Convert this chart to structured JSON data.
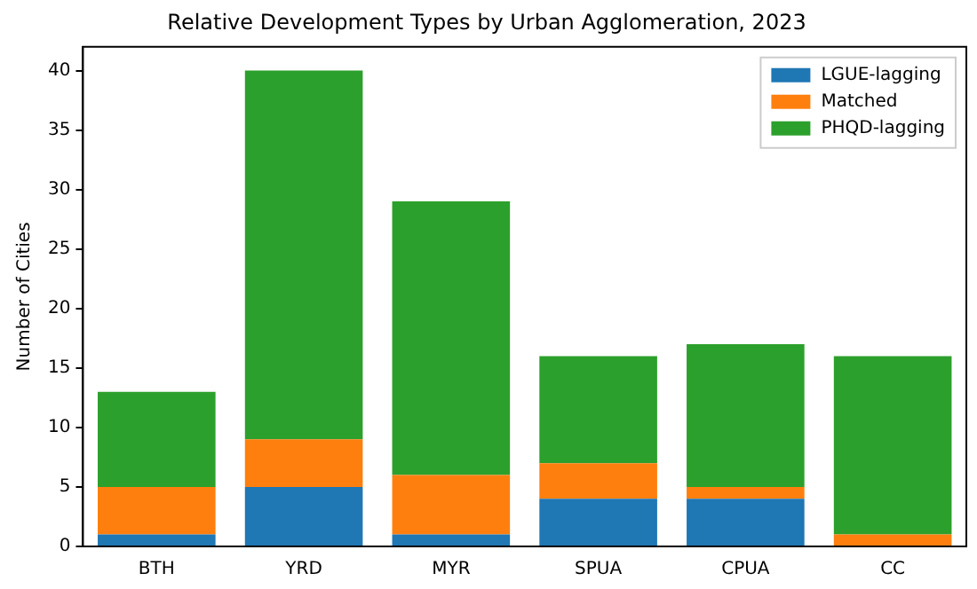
{
  "chart_data": {
    "type": "bar",
    "title": "Relative Development Types by Urban Agglomeration, 2023",
    "ylabel": "Number of Cities",
    "categories": [
      "BTH",
      "YRD",
      "MYR",
      "SPUA",
      "CPUA",
      "CC"
    ],
    "stacked": true,
    "legend": "top right",
    "grid": false,
    "ylim": [
      0,
      42
    ],
    "yticks": [
      0,
      5,
      10,
      15,
      20,
      25,
      30,
      35,
      40
    ],
    "series": [
      {
        "name": "LGUE-lagging",
        "color": "#1f77b4",
        "values": [
          1,
          5,
          1,
          4,
          4,
          0
        ]
      },
      {
        "name": "Matched",
        "color": "#ff7f0e",
        "values": [
          4,
          4,
          5,
          3,
          1,
          1
        ]
      },
      {
        "name": "PHQD-lagging",
        "color": "#2ca02c",
        "values": [
          8,
          31,
          23,
          9,
          12,
          15
        ]
      }
    ]
  }
}
